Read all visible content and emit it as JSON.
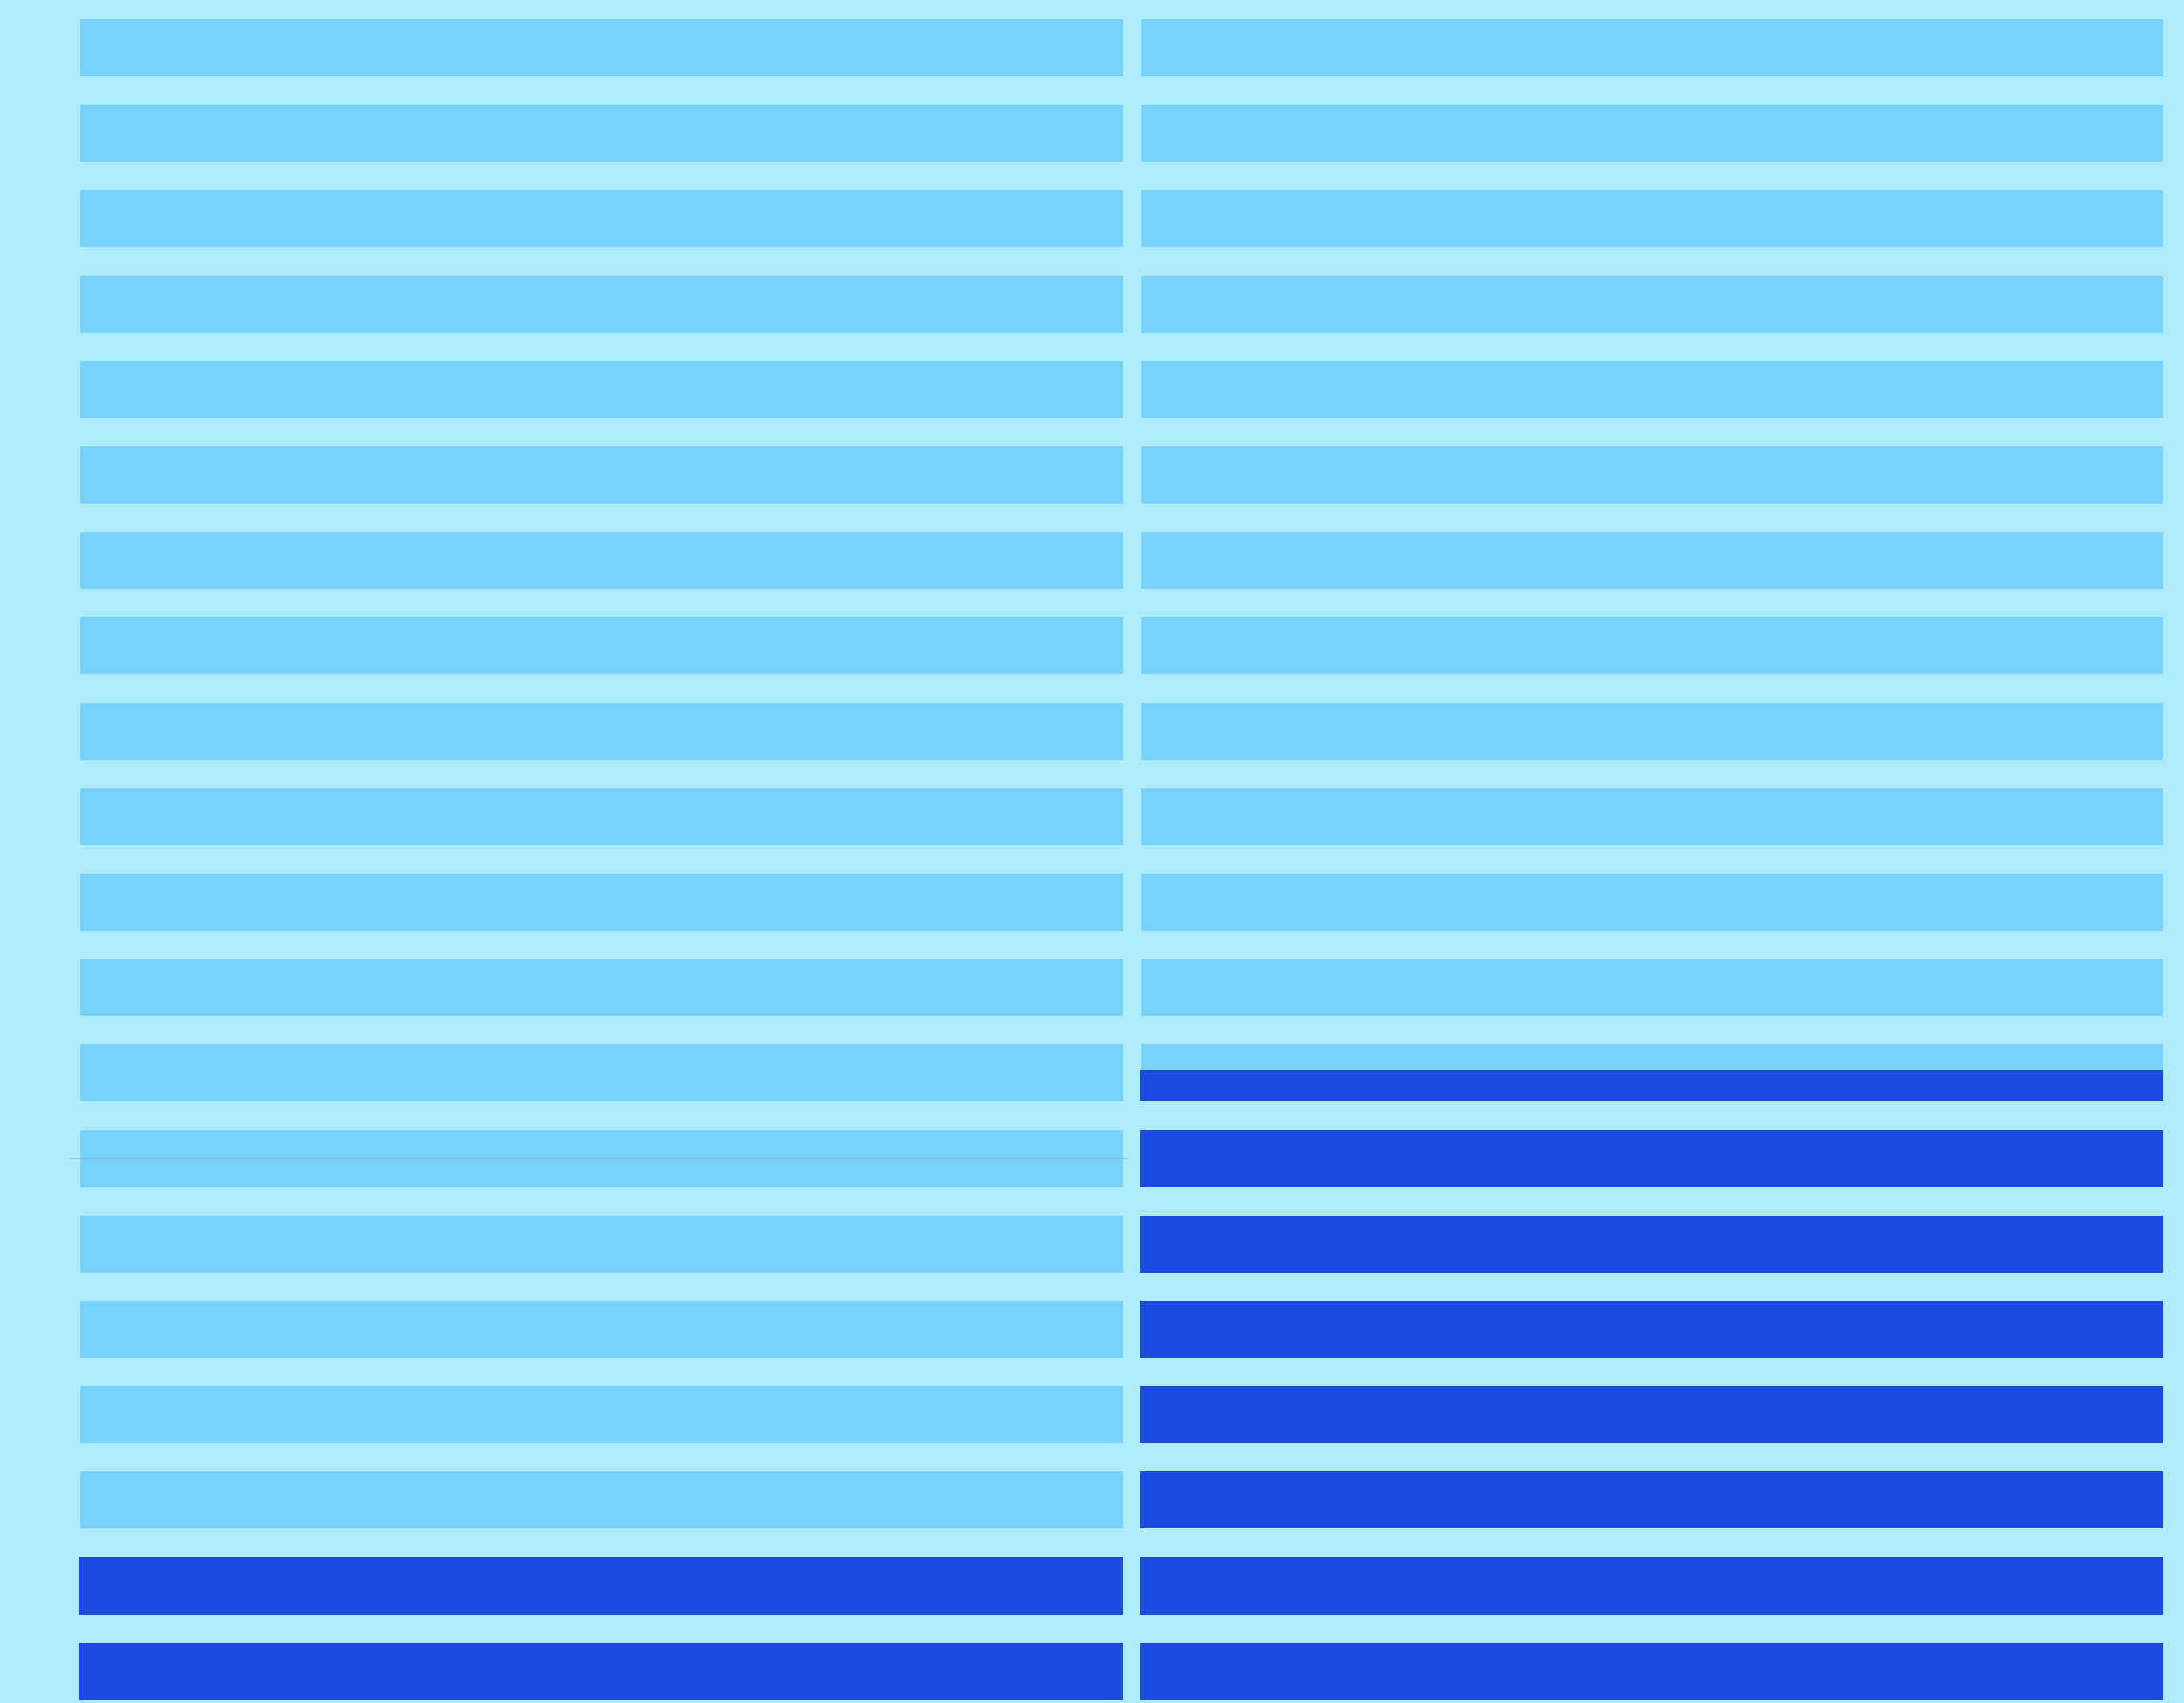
{
  "colors": {
    "background": "#aeebfb",
    "bar_empty": "#77d2fd",
    "bar_filled": "#1d4ae0",
    "divider": "#9aa7b2"
  },
  "columns": [
    {
      "name": "left-column",
      "rows": [
        0,
        0,
        0,
        0,
        0,
        0,
        0,
        0,
        0,
        0,
        0,
        0,
        0,
        0,
        0,
        0,
        0,
        0,
        1,
        1
      ]
    },
    {
      "name": "right-column",
      "rows": [
        0,
        0,
        0,
        0,
        0,
        0,
        0,
        0,
        0,
        0,
        0,
        0,
        0.55,
        1,
        1,
        1,
        1,
        1,
        1,
        1
      ]
    }
  ]
}
